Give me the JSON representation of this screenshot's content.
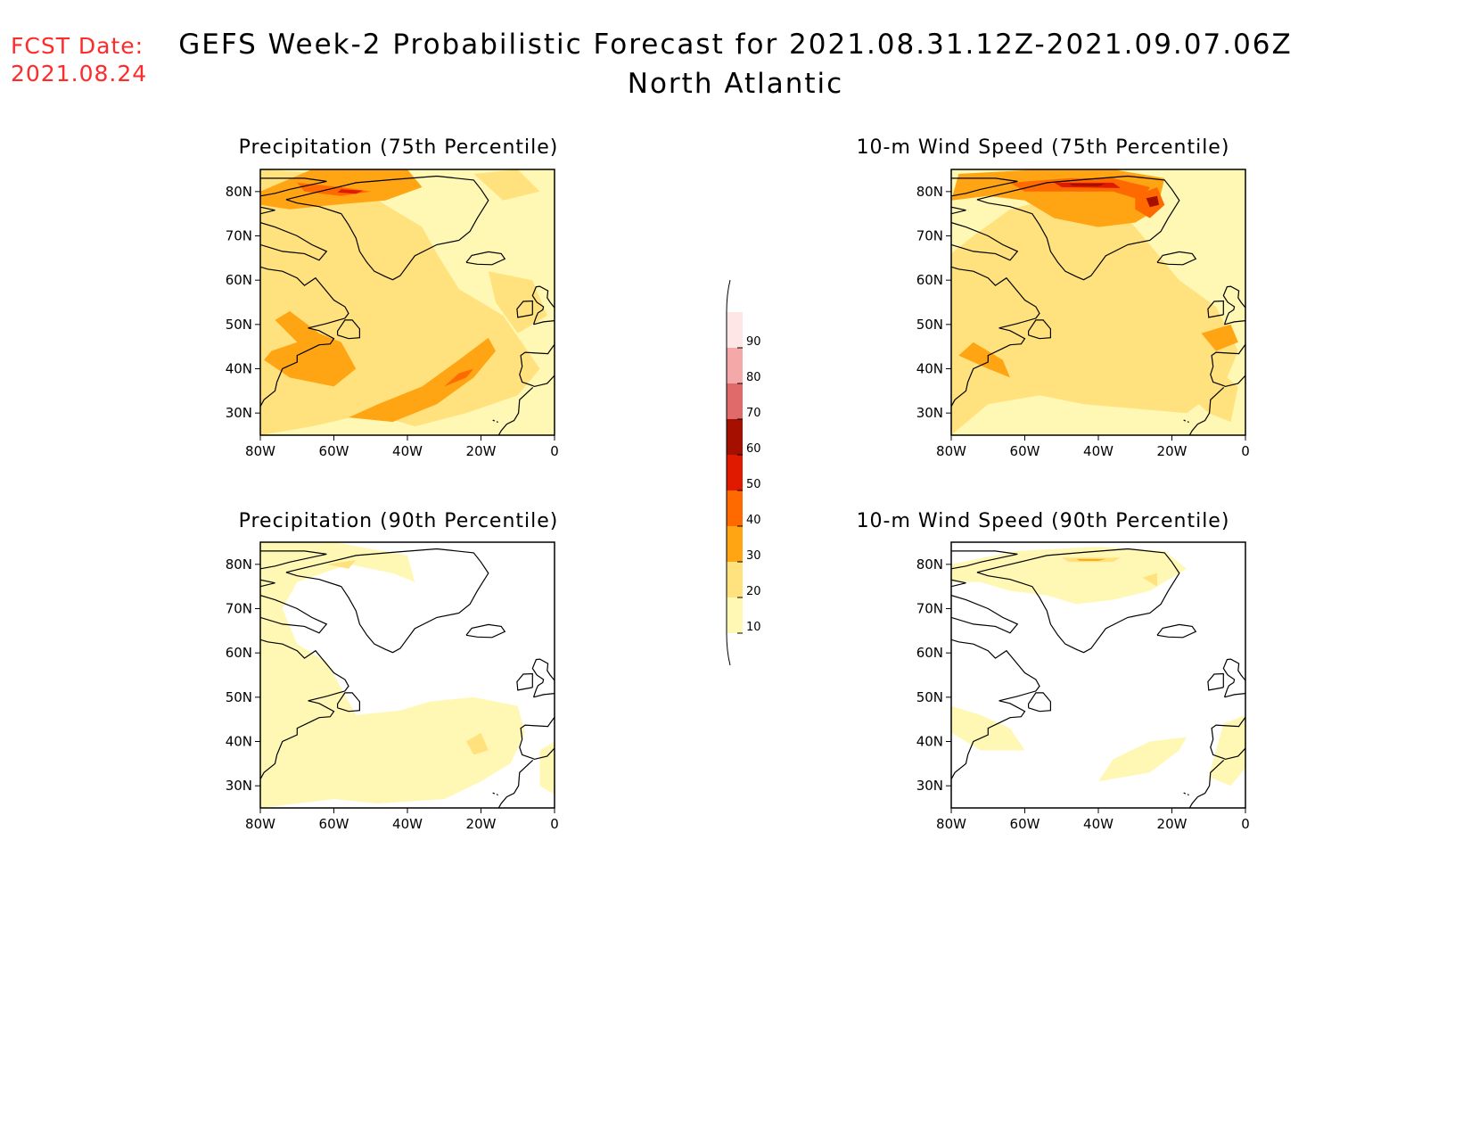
{
  "header": {
    "fcst_label": "FCST Date:",
    "fcst_date": "2021.08.24",
    "title": "GEFS Week-2 Probabilistic Forecast for 2021.08.31.12Z-2021.09.07.06Z",
    "subtitle": "North Atlantic"
  },
  "panels": [
    {
      "key": "precip75",
      "title": "Precipitation (75th Percentile)"
    },
    {
      "key": "wind75",
      "title": "10-m Wind Speed (75th Percentile)"
    },
    {
      "key": "precip90",
      "title": "Precipitation (90th Percentile)"
    },
    {
      "key": "wind90",
      "title": "10-m Wind Speed (90th Percentile)"
    }
  ],
  "axes": {
    "lat_labels": [
      "80N",
      "70N",
      "60N",
      "50N",
      "40N",
      "30N"
    ],
    "lon_labels": [
      "80W",
      "60W",
      "40W",
      "20W",
      "0"
    ]
  },
  "colorbar": {
    "levels": [
      "10",
      "20",
      "30",
      "40",
      "50",
      "60",
      "70",
      "80",
      "90"
    ],
    "colors": [
      "#fff8b4",
      "#ffe27e",
      "#ffa514",
      "#ff6a00",
      "#e01a00",
      "#a50f00",
      "#e06a6a",
      "#f5a8a8",
      "#ffe6e6"
    ]
  }
}
